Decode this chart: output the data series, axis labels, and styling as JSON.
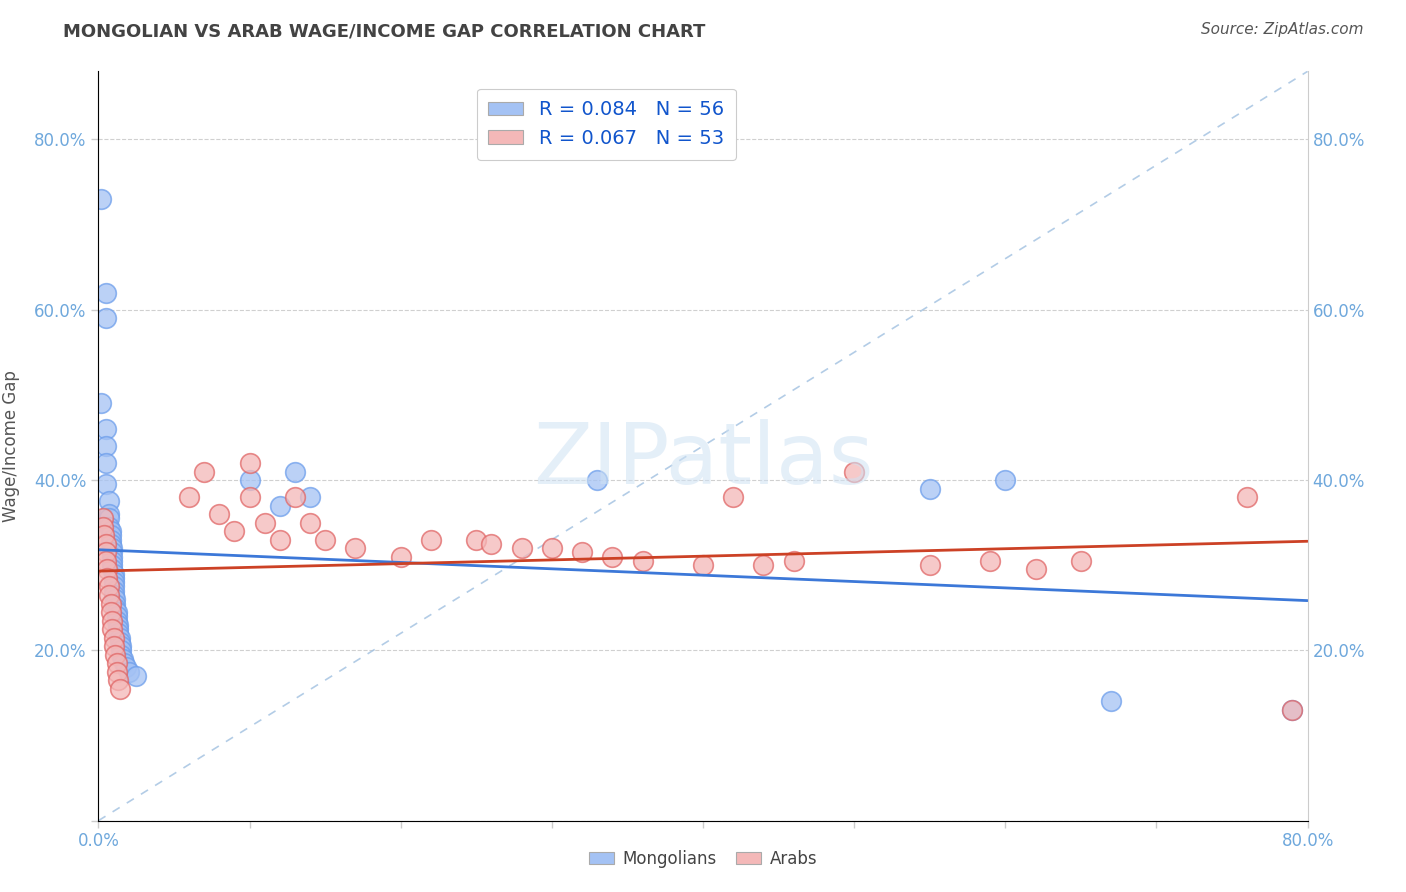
{
  "title": "MONGOLIAN VS ARAB WAGE/INCOME GAP CORRELATION CHART",
  "source": "Source: ZipAtlas.com",
  "ylabel": "Wage/Income Gap",
  "x_min": 0.0,
  "x_max": 0.8,
  "y_min": 0.0,
  "y_max": 0.88,
  "x_ticks": [
    0.0,
    0.1,
    0.2,
    0.3,
    0.4,
    0.5,
    0.6,
    0.7,
    0.8
  ],
  "y_ticks": [
    0.0,
    0.2,
    0.4,
    0.6,
    0.8
  ],
  "x_tick_labels": [
    "0.0%",
    "",
    "",
    "",
    "",
    "",
    "",
    "",
    "80.0%"
  ],
  "y_tick_labels_left": [
    "",
    "20.0%",
    "40.0%",
    "60.0%",
    "80.0%"
  ],
  "y_tick_labels_right": [
    "",
    "20.0%",
    "40.0%",
    "60.0%",
    "80.0%"
  ],
  "mongolian_color": "#a4c2f4",
  "arab_color": "#f4b8b8",
  "mongolian_edge": "#6d9eeb",
  "arab_edge": "#e06666",
  "trend_mongolian_color": "#3c78d8",
  "trend_arab_color": "#cc4125",
  "R_mongolian": 0.084,
  "N_mongolian": 56,
  "R_arab": 0.067,
  "N_arab": 53,
  "mongolian_points": [
    [
      0.002,
      0.73
    ],
    [
      0.005,
      0.62
    ],
    [
      0.005,
      0.59
    ],
    [
      0.002,
      0.49
    ],
    [
      0.005,
      0.46
    ],
    [
      0.005,
      0.44
    ],
    [
      0.005,
      0.42
    ],
    [
      0.005,
      0.395
    ],
    [
      0.007,
      0.375
    ],
    [
      0.007,
      0.36
    ],
    [
      0.007,
      0.355
    ],
    [
      0.007,
      0.345
    ],
    [
      0.008,
      0.34
    ],
    [
      0.008,
      0.335
    ],
    [
      0.008,
      0.33
    ],
    [
      0.008,
      0.325
    ],
    [
      0.009,
      0.32
    ],
    [
      0.009,
      0.315
    ],
    [
      0.009,
      0.31
    ],
    [
      0.009,
      0.305
    ],
    [
      0.009,
      0.3
    ],
    [
      0.009,
      0.295
    ],
    [
      0.01,
      0.29
    ],
    [
      0.01,
      0.285
    ],
    [
      0.01,
      0.28
    ],
    [
      0.01,
      0.275
    ],
    [
      0.01,
      0.27
    ],
    [
      0.01,
      0.265
    ],
    [
      0.011,
      0.26
    ],
    [
      0.011,
      0.255
    ],
    [
      0.011,
      0.25
    ],
    [
      0.012,
      0.245
    ],
    [
      0.012,
      0.24
    ],
    [
      0.012,
      0.235
    ],
    [
      0.013,
      0.23
    ],
    [
      0.013,
      0.225
    ],
    [
      0.013,
      0.22
    ],
    [
      0.014,
      0.215
    ],
    [
      0.014,
      0.21
    ],
    [
      0.015,
      0.205
    ],
    [
      0.015,
      0.2
    ],
    [
      0.015,
      0.195
    ],
    [
      0.016,
      0.19
    ],
    [
      0.017,
      0.185
    ],
    [
      0.018,
      0.18
    ],
    [
      0.02,
      0.175
    ],
    [
      0.025,
      0.17
    ],
    [
      0.1,
      0.4
    ],
    [
      0.12,
      0.37
    ],
    [
      0.13,
      0.41
    ],
    [
      0.14,
      0.38
    ],
    [
      0.33,
      0.4
    ],
    [
      0.55,
      0.39
    ],
    [
      0.6,
      0.4
    ],
    [
      0.67,
      0.14
    ],
    [
      0.79,
      0.13
    ]
  ],
  "arab_points": [
    [
      0.003,
      0.355
    ],
    [
      0.003,
      0.345
    ],
    [
      0.004,
      0.335
    ],
    [
      0.005,
      0.325
    ],
    [
      0.005,
      0.315
    ],
    [
      0.005,
      0.305
    ],
    [
      0.006,
      0.295
    ],
    [
      0.006,
      0.285
    ],
    [
      0.007,
      0.275
    ],
    [
      0.007,
      0.265
    ],
    [
      0.008,
      0.255
    ],
    [
      0.008,
      0.245
    ],
    [
      0.009,
      0.235
    ],
    [
      0.009,
      0.225
    ],
    [
      0.01,
      0.215
    ],
    [
      0.01,
      0.205
    ],
    [
      0.011,
      0.195
    ],
    [
      0.012,
      0.185
    ],
    [
      0.012,
      0.175
    ],
    [
      0.013,
      0.165
    ],
    [
      0.014,
      0.155
    ],
    [
      0.06,
      0.38
    ],
    [
      0.07,
      0.41
    ],
    [
      0.08,
      0.36
    ],
    [
      0.09,
      0.34
    ],
    [
      0.1,
      0.42
    ],
    [
      0.1,
      0.38
    ],
    [
      0.11,
      0.35
    ],
    [
      0.12,
      0.33
    ],
    [
      0.13,
      0.38
    ],
    [
      0.14,
      0.35
    ],
    [
      0.15,
      0.33
    ],
    [
      0.17,
      0.32
    ],
    [
      0.2,
      0.31
    ],
    [
      0.22,
      0.33
    ],
    [
      0.25,
      0.33
    ],
    [
      0.26,
      0.325
    ],
    [
      0.28,
      0.32
    ],
    [
      0.3,
      0.32
    ],
    [
      0.32,
      0.315
    ],
    [
      0.34,
      0.31
    ],
    [
      0.36,
      0.305
    ],
    [
      0.4,
      0.3
    ],
    [
      0.42,
      0.38
    ],
    [
      0.44,
      0.3
    ],
    [
      0.46,
      0.305
    ],
    [
      0.5,
      0.41
    ],
    [
      0.55,
      0.3
    ],
    [
      0.59,
      0.305
    ],
    [
      0.62,
      0.295
    ],
    [
      0.65,
      0.305
    ],
    [
      0.76,
      0.38
    ],
    [
      0.79,
      0.13
    ]
  ],
  "watermark": "ZIPatlas",
  "background_color": "#ffffff",
  "plot_bg_color": "#ffffff",
  "grid_color": "#d0d0d0",
  "title_color": "#434343",
  "axis_label_color": "#555555",
  "tick_color": "#6fa8dc",
  "legend_box_color_mongolian": "#a4c2f4",
  "legend_box_color_arab": "#f4b8b8",
  "legend_text_color": "#1155cc"
}
